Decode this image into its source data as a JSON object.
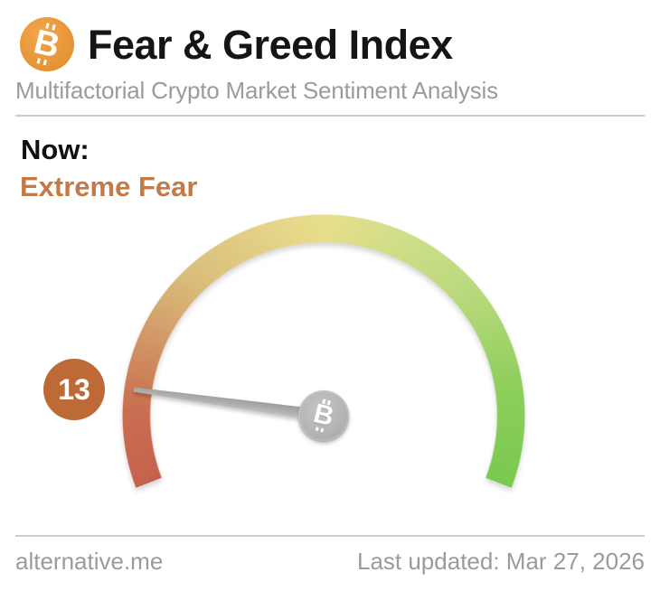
{
  "header": {
    "title": "Fear & Greed Index",
    "subtitle": "Multifactorial Crypto Market Sentiment Analysis"
  },
  "now": {
    "label": "Now:",
    "classification": "Extreme Fear"
  },
  "icons": {
    "bitcoin_symbol": "B"
  },
  "chart_data": {
    "type": "gauge",
    "title": "Fear & Greed Index",
    "value": 13,
    "min": 0,
    "max": 100,
    "classification": "Extreme Fear",
    "angle_start_deg": 201,
    "angle_span_deg": 222,
    "scale_stops": [
      {
        "pos": 0.0,
        "color": "#c5624c"
      },
      {
        "pos": 0.1,
        "color": "#ca6e51"
      },
      {
        "pos": 0.23,
        "color": "#d0995f"
      },
      {
        "pos": 0.3,
        "color": "#d4b263"
      },
      {
        "pos": 0.5,
        "color": "#e2d66f"
      },
      {
        "pos": 0.62,
        "color": "#c0d76c"
      },
      {
        "pos": 0.7,
        "color": "#b5d56c"
      },
      {
        "pos": 0.85,
        "color": "#90cf5c"
      },
      {
        "pos": 1.0,
        "color": "#79c94f"
      }
    ]
  },
  "footer": {
    "site": "alternative.me",
    "last_updated": "Last updated: Mar 27, 2026"
  },
  "colors": {
    "brand_orange": "#e8973a",
    "title_text": "#151515",
    "muted_text": "#9b9b9b",
    "divider": "#cccccc",
    "classification_text": "#c47a46",
    "value_badge_bg": "#bd6a36",
    "needle_gray": "#adadad",
    "hub_gray": "#b3b3b3"
  }
}
